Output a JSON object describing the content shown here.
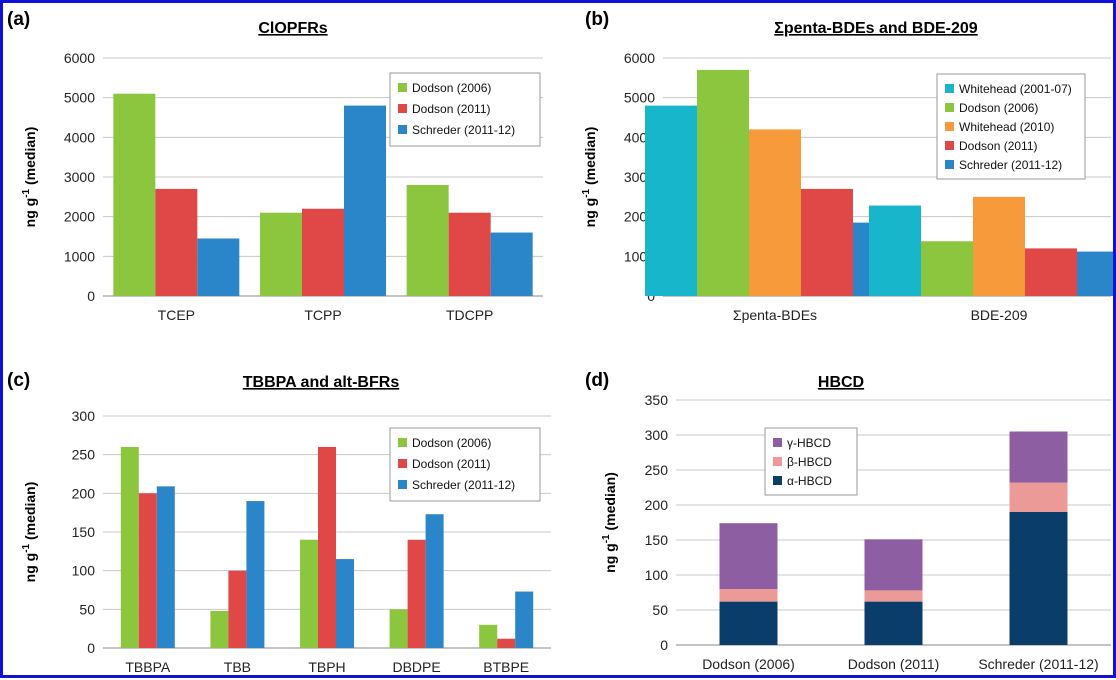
{
  "colors": {
    "green": "#8cc63f",
    "red": "#e04848",
    "blue": "#2a86c8",
    "cyan": "#17b6cb",
    "orange": "#f79a3c",
    "purple": "#8e5ea2",
    "pink": "#eb9a98",
    "navy": "#0b3d6b",
    "frame": "#1010d8"
  },
  "chart_data": [
    {
      "panel": "(a)",
      "type": "bar",
      "title": "ClOPFRs",
      "ylabel": "ng g⁻¹ (median)",
      "ylim": [
        0,
        6000
      ],
      "yticks": [
        0,
        1000,
        2000,
        3000,
        4000,
        5000,
        6000
      ],
      "grid": true,
      "legend": "top-right",
      "categories": [
        "TCEP",
        "TCPP",
        "TDCPP"
      ],
      "series": [
        {
          "name": "Dodson (2006)",
          "color": "green",
          "values": [
            5100,
            2100,
            2800
          ]
        },
        {
          "name": "Dodson (2011)",
          "color": "red",
          "values": [
            2700,
            2200,
            2100
          ]
        },
        {
          "name": "Schreder (2011-12)",
          "color": "blue",
          "values": [
            1450,
            4800,
            1600
          ]
        }
      ]
    },
    {
      "panel": "(b)",
      "type": "bar",
      "title": "Σpenta-BDEs and BDE-209",
      "ylabel": "ng g⁻¹ (median)",
      "ylim": [
        0,
        6000
      ],
      "yticks": [
        0,
        1000,
        2000,
        3000,
        4000,
        5000,
        6000
      ],
      "grid": true,
      "legend": "top-right",
      "categories": [
        "Σpenta-BDEs",
        "BDE-209"
      ],
      "series": [
        {
          "name": "Whitehead (2001-07)",
          "color": "cyan",
          "values": [
            4800,
            2280
          ]
        },
        {
          "name": "Dodson (2006)",
          "color": "green",
          "values": [
            5700,
            1380
          ]
        },
        {
          "name": "Whitehead (2010)",
          "color": "orange",
          "values": [
            4200,
            2500
          ]
        },
        {
          "name": "Dodson (2011)",
          "color": "red",
          "values": [
            2700,
            1200
          ]
        },
        {
          "name": "Schreder (2011-12)",
          "color": "blue",
          "values": [
            1850,
            1120
          ]
        }
      ]
    },
    {
      "panel": "(c)",
      "type": "bar",
      "title": "TBBPA and alt-BFRs",
      "ylabel": "ng g⁻¹ (median)",
      "ylim": [
        0,
        300
      ],
      "yticks": [
        0,
        50,
        100,
        150,
        200,
        250,
        300
      ],
      "grid": true,
      "legend": "top-right",
      "categories": [
        "TBBPA",
        "TBB",
        "TBPH",
        "DBDPE",
        "BTBPE"
      ],
      "series": [
        {
          "name": "Dodson (2006)",
          "color": "green",
          "values": [
            260,
            48,
            140,
            50,
            30
          ]
        },
        {
          "name": "Dodson (2011)",
          "color": "red",
          "values": [
            200,
            100,
            260,
            140,
            12
          ]
        },
        {
          "name": "Schreder (2011-12)",
          "color": "blue",
          "values": [
            209,
            190,
            115,
            173,
            73
          ]
        }
      ]
    },
    {
      "panel": "(d)",
      "type": "bar",
      "stacked": true,
      "title": "HBCD",
      "ylabel": "ng g⁻¹ (median)",
      "ylim": [
        0,
        350
      ],
      "yticks": [
        0,
        50,
        100,
        150,
        200,
        250,
        300,
        350
      ],
      "grid": true,
      "legend": "top-left",
      "categories": [
        "Dodson (2006)",
        "Dodson (2011)",
        "Schreder (2011-12)"
      ],
      "series": [
        {
          "name": "α-HBCD",
          "color": "navy",
          "values": [
            62,
            62,
            190
          ]
        },
        {
          "name": "β-HBCD",
          "color": "pink",
          "values": [
            18,
            16,
            42
          ]
        },
        {
          "name": "γ-HBCD",
          "color": "purple",
          "values": [
            94,
            73,
            73
          ]
        }
      ]
    }
  ]
}
